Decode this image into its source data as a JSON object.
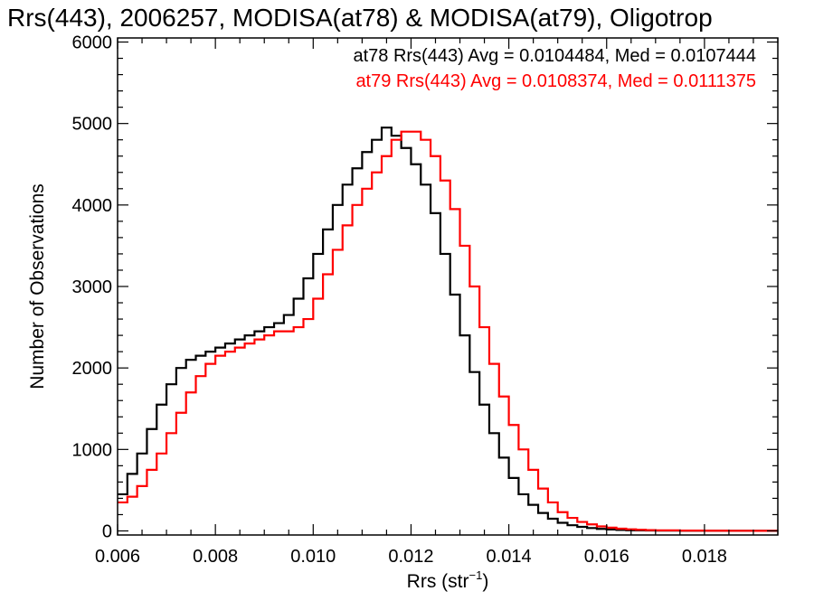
{
  "chart_data": {
    "type": "line",
    "title": "Rrs(443), 2006257, MODISA(at78) & MODISA(at79), Oligotrop",
    "xlabel": "Rrs (str",
    "xlabel_sup": "−1",
    "xlabel_close": ")",
    "ylabel": "Number of Observations",
    "xlim": [
      0.006,
      0.0195
    ],
    "ylim": [
      -50,
      6050
    ],
    "xticks": [
      0.006,
      0.008,
      0.01,
      0.012,
      0.014,
      0.016,
      0.018
    ],
    "xtick_labels": [
      "0.006",
      "0.008",
      "0.010",
      "0.012",
      "0.014",
      "0.016",
      "0.018"
    ],
    "yticks": [
      0,
      1000,
      2000,
      3000,
      4000,
      5000,
      6000
    ],
    "ytick_labels": [
      "0",
      "1000",
      "2000",
      "3000",
      "4000",
      "5000",
      "6000"
    ],
    "grid": false,
    "legend_position": "top-right",
    "series": [
      {
        "name": "at78 Rrs(443) Avg = 0.0104484, Med = 0.0107444",
        "color": "#000000",
        "step": true,
        "x": [
          0.006,
          0.0062,
          0.0064,
          0.0066,
          0.0068,
          0.007,
          0.0072,
          0.0074,
          0.0076,
          0.0078,
          0.008,
          0.0082,
          0.0084,
          0.0086,
          0.0088,
          0.009,
          0.0092,
          0.0094,
          0.0096,
          0.0098,
          0.01,
          0.0102,
          0.0104,
          0.0106,
          0.0108,
          0.011,
          0.0112,
          0.0114,
          0.0116,
          0.0118,
          0.012,
          0.0122,
          0.0124,
          0.0126,
          0.0128,
          0.013,
          0.0132,
          0.0134,
          0.0136,
          0.0138,
          0.014,
          0.0142,
          0.0144,
          0.0146,
          0.0148,
          0.015,
          0.0152,
          0.0154,
          0.0156,
          0.0158,
          0.016,
          0.0162,
          0.0164,
          0.0166,
          0.0168,
          0.017,
          0.0175,
          0.018,
          0.0185,
          0.019,
          0.0195
        ],
        "y": [
          450,
          700,
          950,
          1250,
          1550,
          1800,
          2000,
          2100,
          2150,
          2200,
          2250,
          2300,
          2350,
          2400,
          2450,
          2500,
          2550,
          2650,
          2850,
          3100,
          3400,
          3700,
          4000,
          4250,
          4450,
          4650,
          4800,
          4950,
          4850,
          4700,
          4500,
          4250,
          3900,
          3400,
          2900,
          2400,
          1950,
          1550,
          1200,
          900,
          650,
          450,
          320,
          220,
          150,
          100,
          70,
          50,
          35,
          25,
          18,
          12,
          8,
          6,
          5,
          4,
          3,
          2,
          2,
          1,
          1
        ]
      },
      {
        "name": "at79 Rrs(443) Avg = 0.0108374, Med = 0.0111375",
        "color": "#ff0000",
        "step": true,
        "x": [
          0.006,
          0.0062,
          0.0064,
          0.0066,
          0.0068,
          0.007,
          0.0072,
          0.0074,
          0.0076,
          0.0078,
          0.008,
          0.0082,
          0.0084,
          0.0086,
          0.0088,
          0.009,
          0.0092,
          0.0094,
          0.0096,
          0.0098,
          0.01,
          0.0102,
          0.0104,
          0.0106,
          0.0108,
          0.011,
          0.0112,
          0.0114,
          0.0116,
          0.0118,
          0.012,
          0.0122,
          0.0124,
          0.0126,
          0.0128,
          0.013,
          0.0132,
          0.0134,
          0.0136,
          0.0138,
          0.014,
          0.0142,
          0.0144,
          0.0146,
          0.0148,
          0.015,
          0.0152,
          0.0154,
          0.0156,
          0.0158,
          0.016,
          0.0162,
          0.0164,
          0.0166,
          0.0168,
          0.017,
          0.0175,
          0.018,
          0.0185,
          0.019,
          0.0195
        ],
        "y": [
          350,
          420,
          550,
          750,
          950,
          1200,
          1450,
          1700,
          1900,
          2050,
          2150,
          2200,
          2250,
          2300,
          2350,
          2400,
          2450,
          2450,
          2500,
          2600,
          2850,
          3150,
          3450,
          3750,
          4000,
          4200,
          4400,
          4600,
          4800,
          4900,
          4900,
          4800,
          4600,
          4300,
          3950,
          3500,
          3000,
          2500,
          2050,
          1650,
          1300,
          1000,
          750,
          520,
          350,
          230,
          160,
          110,
          80,
          55,
          40,
          28,
          20,
          14,
          10,
          7,
          4,
          3,
          2,
          1,
          1
        ]
      }
    ]
  }
}
